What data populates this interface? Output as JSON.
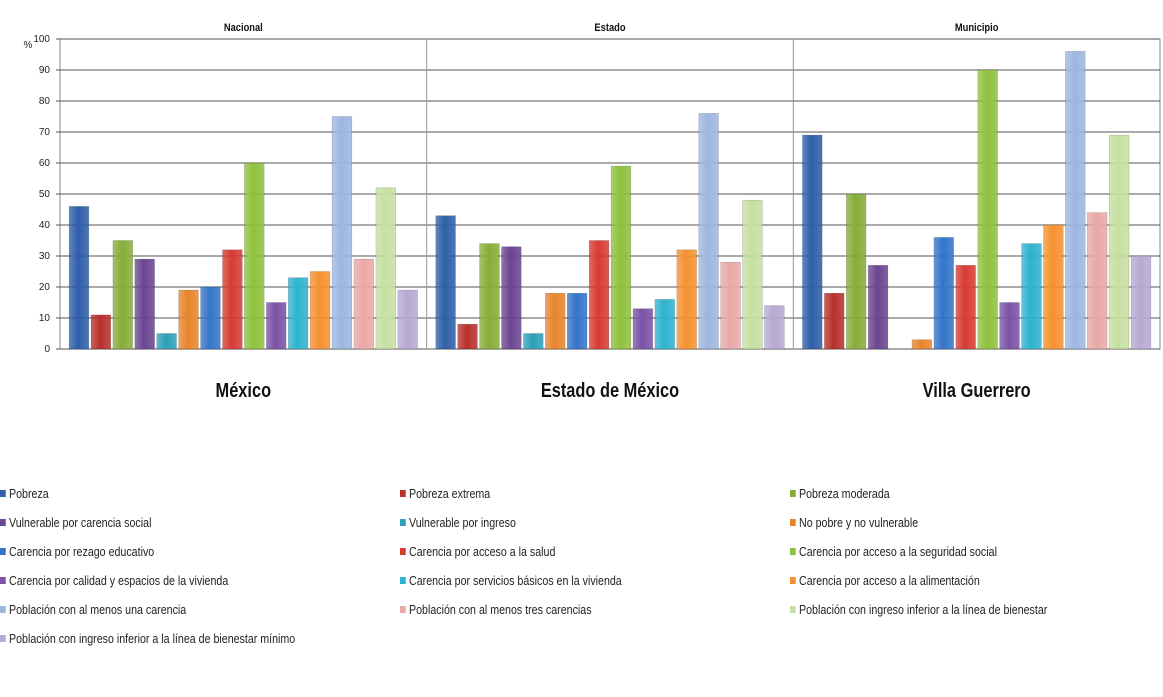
{
  "chart_data": {
    "type": "bar",
    "ylabel": "%",
    "ylim": [
      0,
      100
    ],
    "yticks": [
      0,
      10,
      20,
      30,
      40,
      50,
      60,
      70,
      80,
      90,
      100
    ],
    "grid": true,
    "legend_position": "bottom",
    "panels": [
      {
        "title": "Nacional",
        "category": "México"
      },
      {
        "title": "Estado",
        "category": "Estado de México"
      },
      {
        "title": "Municipio",
        "category": "Villa Guerrero"
      }
    ],
    "series": [
      {
        "name": "Pobreza",
        "color": "#2E5FA8",
        "values": [
          46,
          43,
          69
        ]
      },
      {
        "name": "Pobreza extrema",
        "color": "#B8302C",
        "values": [
          11,
          8,
          18
        ]
      },
      {
        "name": "Pobreza moderada",
        "color": "#86AD38",
        "values": [
          35,
          34,
          50
        ]
      },
      {
        "name": "Vulnerable por carencia social",
        "color": "#6A4590",
        "values": [
          29,
          33,
          27
        ]
      },
      {
        "name": "Vulnerable por ingreso",
        "color": "#2BA0B8",
        "values": [
          5,
          5,
          0
        ]
      },
      {
        "name": "No pobre y no vulnerable",
        "color": "#E8842C",
        "values": [
          19,
          18,
          3
        ]
      },
      {
        "name": "Carencia por rezago educativo",
        "color": "#3474C8",
        "values": [
          20,
          18,
          36
        ]
      },
      {
        "name": "Carencia por acceso a la salud",
        "color": "#D63B33",
        "values": [
          32,
          35,
          27
        ]
      },
      {
        "name": "Carencia por acceso a la seguridad social",
        "color": "#8EC13C",
        "values": [
          60,
          59,
          90
        ]
      },
      {
        "name": "Carencia por calidad y espacios de la vivienda",
        "color": "#7A52A6",
        "values": [
          15,
          13,
          15
        ]
      },
      {
        "name": "Carencia por servicios básicos en la vivienda",
        "color": "#2FB2CE",
        "values": [
          23,
          16,
          34
        ]
      },
      {
        "name": "Carencia por acceso a la alimentación",
        "color": "#F5912F",
        "values": [
          25,
          32,
          40
        ]
      },
      {
        "name": "Población con al menos una carencia",
        "color": "#9DB6E0",
        "values": [
          75,
          76,
          96
        ]
      },
      {
        "name": "Población con al menos tres carencias",
        "color": "#E8A8A6",
        "values": [
          29,
          28,
          44
        ]
      },
      {
        "name": "Población con ingreso inferior a la línea de bienestar",
        "color": "#C6DFA2",
        "values": [
          52,
          48,
          69
        ]
      },
      {
        "name": "Población con ingreso inferior a la línea de bienestar mínimo",
        "color": "#B7A9D2",
        "values": [
          19,
          14,
          30
        ]
      }
    ]
  }
}
